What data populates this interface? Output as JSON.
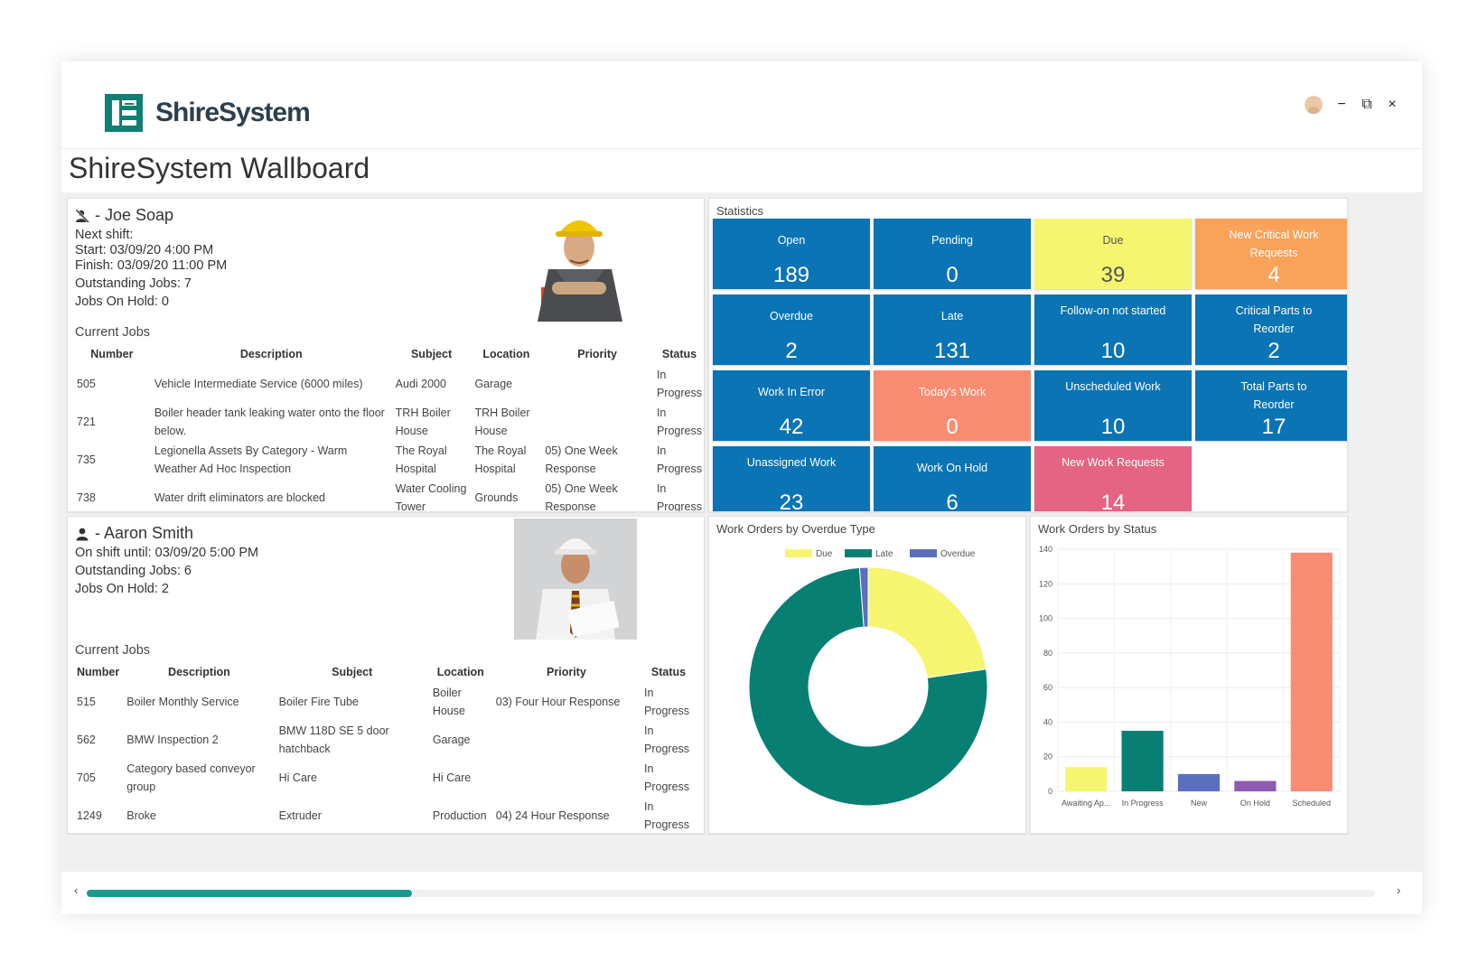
{
  "app": {
    "brand": "ShireSystem",
    "page_title": "ShireSystem Wallboard"
  },
  "window_controls": {
    "avatar_icon": "user-avatar-icon",
    "minimize": "−",
    "restore": "⧉",
    "close": "×"
  },
  "workers": [
    {
      "name": "- Joe Soap",
      "icon": "user-off-shift-icon",
      "lines": [
        "Next shift:",
        "Start: 03/09/20 4:00 PM",
        "Finish: 03/09/20 11:00 PM",
        "Outstanding Jobs: 7",
        "Jobs On Hold: 0"
      ],
      "current_jobs_label": "Current Jobs",
      "columns": [
        "Number",
        "Description",
        "Subject",
        "Location",
        "Priority",
        "Status"
      ],
      "jobs": [
        [
          "505",
          "Vehicle Intermediate Service (6000 miles)",
          "Audi 2000",
          "Garage",
          "",
          "In Progress"
        ],
        [
          "721",
          "Boiler header tank leaking water onto the floor below.",
          "TRH Boiler House",
          "TRH Boiler House",
          "",
          "In Progress"
        ],
        [
          "735",
          "Legionella Assets By Category - Warm Weather Ad Hoc Inspection",
          "The Royal Hospital",
          "The Royal Hospital",
          "05) One Week Response",
          "In Progress"
        ],
        [
          "738",
          "Water drift eliminators are blocked",
          "Water Cooling Tower",
          "Grounds",
          "05) One Week Response",
          "In Progress"
        ]
      ]
    },
    {
      "name": "- Aaron Smith",
      "icon": "user-icon",
      "lines": [
        "On shift until: 03/09/20 5:00 PM",
        "Outstanding Jobs: 6",
        "Jobs On Hold: 2"
      ],
      "current_jobs_label": "Current Jobs",
      "columns": [
        "Number",
        "Description",
        "Subject",
        "Location",
        "Priority",
        "Status"
      ],
      "jobs": [
        [
          "515",
          "Boiler Monthly Service",
          "Boiler Fire Tube",
          "Boiler House",
          "03) Four Hour Response",
          "In Progress"
        ],
        [
          "562",
          "BMW Inspection 2",
          "BMW 118D SE 5 door hatchback",
          "Garage",
          "",
          "In Progress"
        ],
        [
          "705",
          "Category based conveyor group",
          "Hi Care",
          "Hi Care",
          "",
          "In Progress"
        ],
        [
          "1249",
          "Broke",
          "Extruder",
          "Production",
          "04) 24 Hour Response",
          "In Progress"
        ]
      ]
    }
  ],
  "statistics": {
    "title": "Statistics",
    "tiles": [
      {
        "label": "Open",
        "value": "189",
        "color": "blue"
      },
      {
        "label": "Pending",
        "value": "0",
        "color": "blue"
      },
      {
        "label": "Due",
        "value": "39",
        "color": "yellow"
      },
      {
        "label": "New Critical Work Requests",
        "value": "4",
        "color": "orange"
      },
      {
        "label": "Overdue",
        "value": "2",
        "color": "blue"
      },
      {
        "label": "Late",
        "value": "131",
        "color": "blue"
      },
      {
        "label": "Follow-on not started",
        "value": "10",
        "color": "blue"
      },
      {
        "label": "Critical Parts to Reorder",
        "value": "2",
        "color": "blue"
      },
      {
        "label": "Work In Error",
        "value": "42",
        "color": "blue"
      },
      {
        "label": "Today's Work",
        "value": "0",
        "color": "salmon"
      },
      {
        "label": "Unscheduled Work",
        "value": "10",
        "color": "blue"
      },
      {
        "label": "Total Parts to Reorder",
        "value": "17",
        "color": "blue"
      },
      {
        "label": "Unassigned Work",
        "value": "23",
        "color": "blue"
      },
      {
        "label": "Work On Hold",
        "value": "6",
        "color": "blue"
      },
      {
        "label": "New Work Requests",
        "value": "14",
        "color": "pink"
      }
    ]
  },
  "colors": {
    "blue": "#0a74b4",
    "yellow": "#f5f570",
    "teal": "#087f73",
    "indigo": "#5b6fc0",
    "purple": "#8e5bb0",
    "salmon": "#f98c72",
    "brand": "#0d7f73",
    "scroll": "#1c9a8f"
  },
  "chart_data": [
    {
      "type": "pie",
      "title": "Work Orders by Overdue Type",
      "labels": [
        "Due",
        "Late",
        "Overdue"
      ],
      "values": [
        39,
        131,
        2
      ],
      "colors": [
        "#f5f570",
        "#087f73",
        "#5b6fc0"
      ],
      "legend": "top"
    },
    {
      "type": "bar",
      "title": "Work Orders by Status",
      "categories": [
        "Awaiting Ap...",
        "In Progress",
        "New",
        "On Hold",
        "Scheduled"
      ],
      "values": [
        14,
        35,
        10,
        6,
        138
      ],
      "colors": [
        "#f5f570",
        "#087f73",
        "#5b6fc0",
        "#8e5bb0",
        "#f98c72"
      ],
      "ylim": [
        0,
        140
      ],
      "yticks": [
        0,
        20,
        40,
        60,
        80,
        100,
        120,
        140
      ],
      "grid": true
    }
  ]
}
